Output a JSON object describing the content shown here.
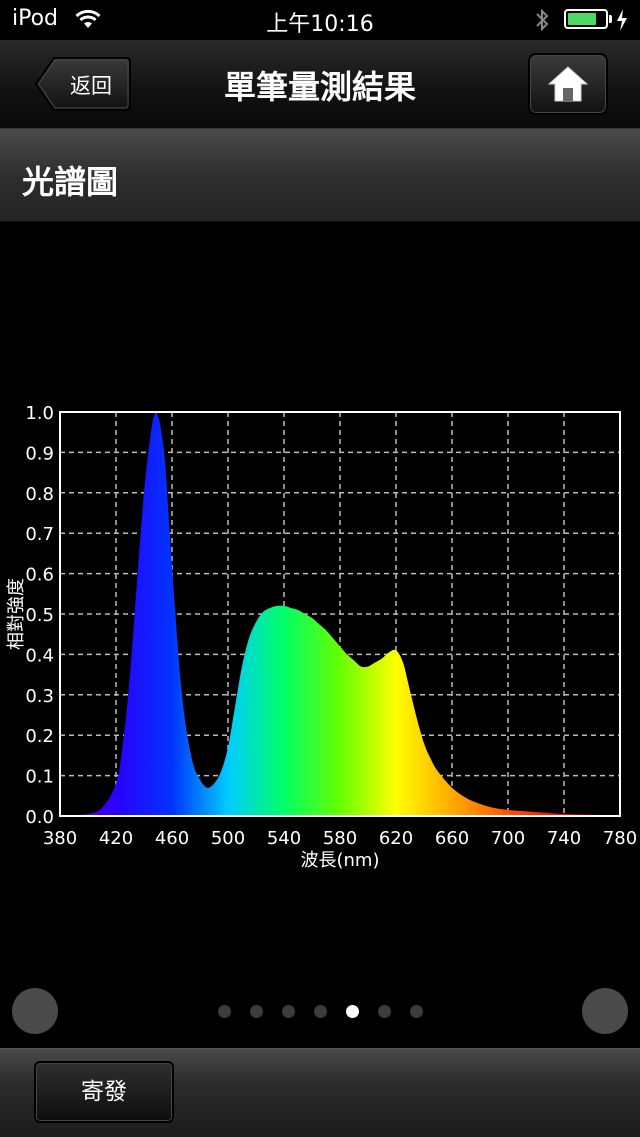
{
  "status_bar": {
    "carrier": "iPod",
    "time": "上午10:16",
    "battery_level": 0.78
  },
  "nav": {
    "back_label": "返回",
    "title": "單筆量測結果",
    "home_icon": "home-icon"
  },
  "section": {
    "title": "光譜圖"
  },
  "chart_data": {
    "type": "area",
    "title": "",
    "xlabel": "波長(nm)",
    "ylabel": "相對強度",
    "xlim": [
      380,
      780
    ],
    "ylim": [
      0,
      1.0
    ],
    "grid": true,
    "x_ticks": [
      "380",
      "420",
      "460",
      "500",
      "540",
      "580",
      "620",
      "660",
      "700",
      "740",
      "780"
    ],
    "y_ticks": [
      "0.0",
      "0.1",
      "0.2",
      "0.3",
      "0.4",
      "0.5",
      "0.6",
      "0.7",
      "0.8",
      "0.9",
      "1.0"
    ],
    "x": [
      380,
      400,
      410,
      420,
      425,
      430,
      435,
      440,
      445,
      448,
      450,
      452,
      455,
      458,
      462,
      466,
      470,
      475,
      480,
      485,
      490,
      495,
      500,
      505,
      510,
      515,
      520,
      525,
      530,
      535,
      540,
      545,
      550,
      555,
      560,
      565,
      570,
      575,
      580,
      585,
      590,
      595,
      600,
      605,
      610,
      615,
      620,
      625,
      630,
      635,
      640,
      645,
      650,
      660,
      670,
      680,
      690,
      700,
      720,
      740,
      760,
      780
    ],
    "y": [
      0.0,
      0.005,
      0.02,
      0.08,
      0.18,
      0.35,
      0.58,
      0.8,
      0.95,
      1.0,
      0.99,
      0.96,
      0.88,
      0.72,
      0.52,
      0.34,
      0.22,
      0.13,
      0.09,
      0.07,
      0.08,
      0.11,
      0.17,
      0.27,
      0.37,
      0.44,
      0.48,
      0.505,
      0.515,
      0.52,
      0.52,
      0.515,
      0.51,
      0.5,
      0.49,
      0.475,
      0.46,
      0.44,
      0.42,
      0.4,
      0.385,
      0.37,
      0.37,
      0.38,
      0.39,
      0.405,
      0.41,
      0.38,
      0.31,
      0.24,
      0.18,
      0.14,
      0.11,
      0.07,
      0.045,
      0.03,
      0.02,
      0.015,
      0.01,
      0.005,
      0.003,
      0.0
    ],
    "gradient_colors": [
      "#6a00cc",
      "#2a00ff",
      "#0033ff",
      "#00ccff",
      "#00ff66",
      "#66ff00",
      "#ffff00",
      "#ffaa00",
      "#ff5500",
      "#ff0000",
      "#ff0022"
    ]
  },
  "pager": {
    "count": 7,
    "active_index": 4
  },
  "toolbar": {
    "send_label": "寄發"
  }
}
